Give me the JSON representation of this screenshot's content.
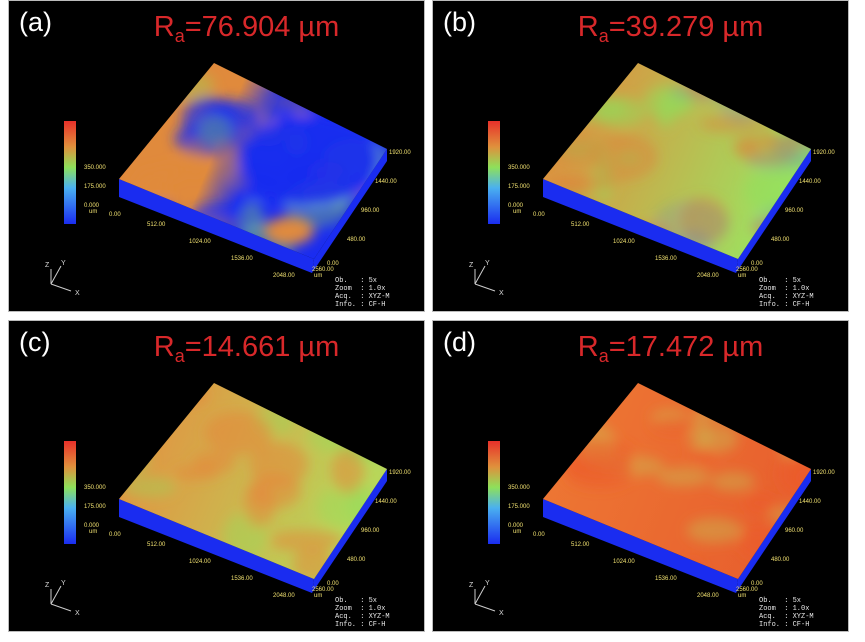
{
  "panels": [
    {
      "label": "(a)",
      "title_main": "R",
      "title_sub": "a",
      "title_value": "=76.904 µm",
      "scheme": "a"
    },
    {
      "label": "(b)",
      "title_main": "R",
      "title_sub": "a",
      "title_value": "=39.279 µm",
      "scheme": "b"
    },
    {
      "label": "(c)",
      "title_main": "R",
      "title_sub": "a",
      "title_value": "=14.661 µm",
      "scheme": "c"
    },
    {
      "label": "(d)",
      "title_main": "R",
      "title_sub": "a",
      "title_value": "=17.472 µm",
      "scheme": "d"
    }
  ],
  "common": {
    "colorbar_ticks": [
      "350.000",
      "175.000",
      "0.000"
    ],
    "colorbar_unit": "um",
    "x_ticks": [
      "0.00",
      "512.00",
      "1024.00",
      "1536.00",
      "2048.00",
      "2560.00"
    ],
    "y_ticks": [
      "480.00",
      "960.00",
      "1440.00",
      "1920.00"
    ],
    "y_origin": "0.00",
    "axis_unit": "um",
    "axes": [
      "Z",
      "Y",
      "X"
    ],
    "info": [
      "Ob.   : 5x",
      "Zoom  : 1.0x",
      "Acq.  : XYZ-M",
      "Info. : CF-H"
    ]
  },
  "colors": {
    "title": "#d8282a",
    "surface_blue": "#1a2cf0",
    "orange": "#e08a3c",
    "green": "#8ee05a",
    "red": "#e8402a"
  }
}
